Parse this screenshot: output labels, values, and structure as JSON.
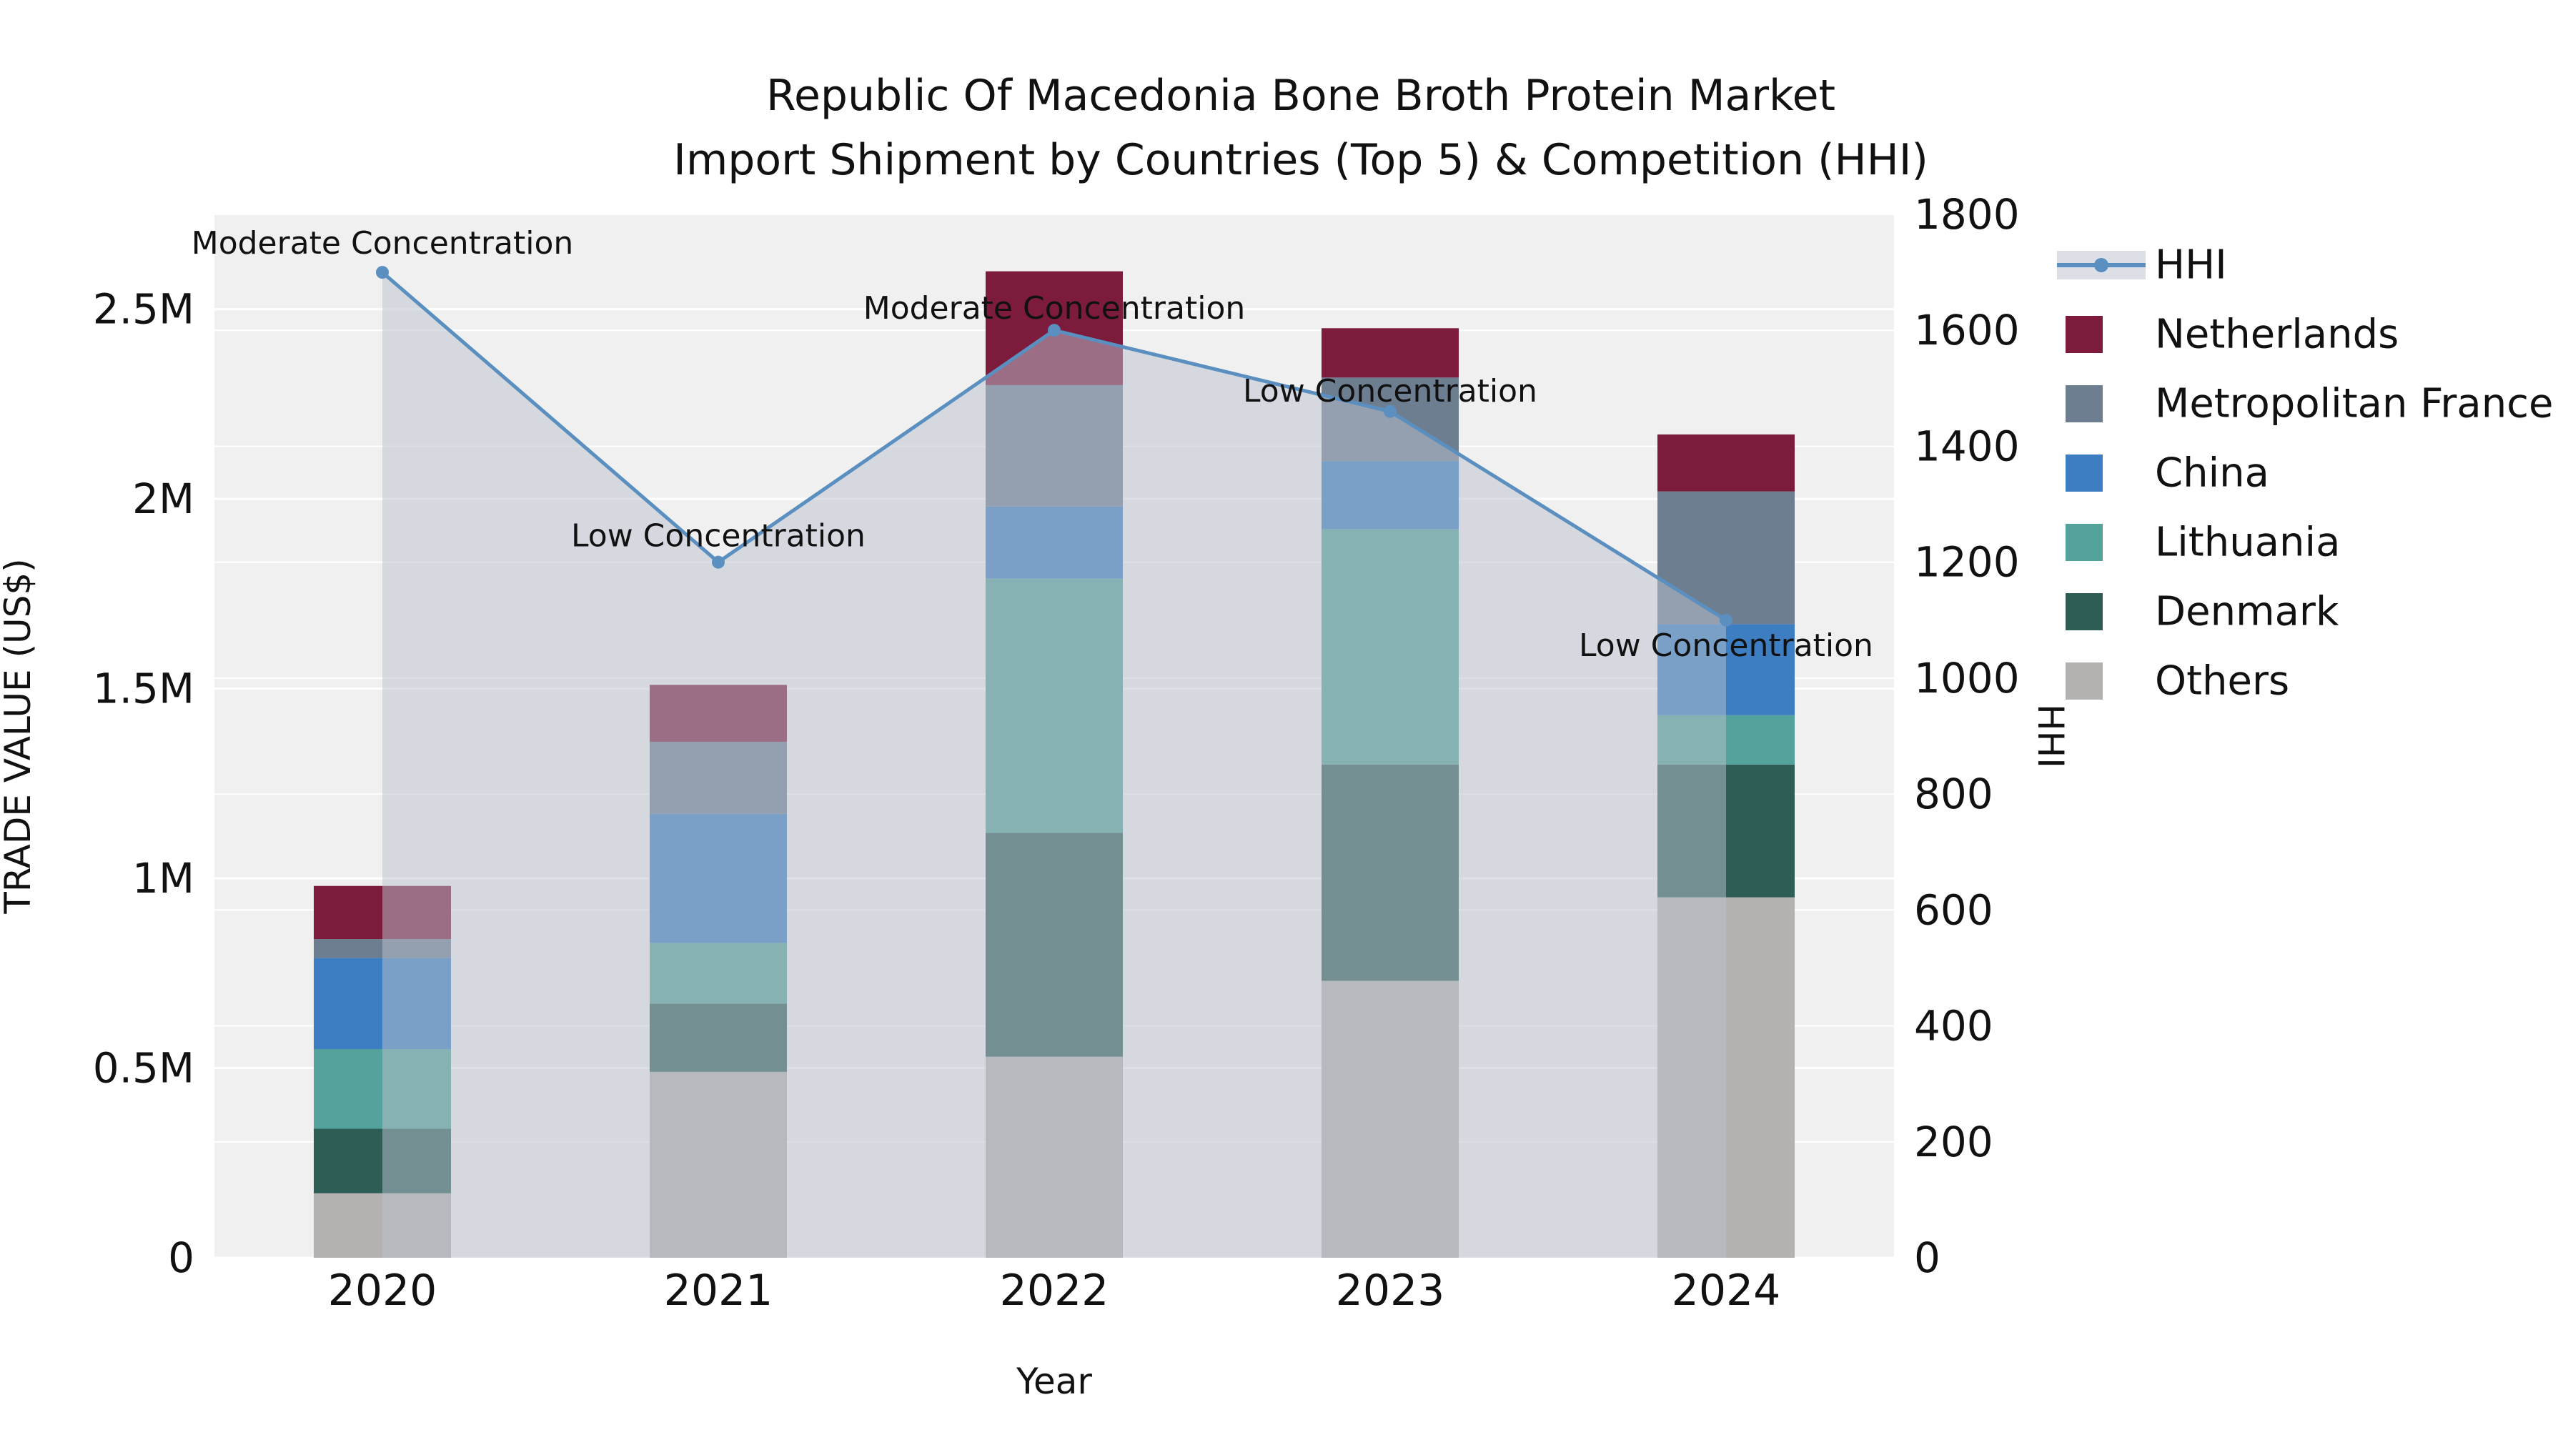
{
  "title": "Republic Of Macedonia Bone Broth Protein Market",
  "subtitle": "Import Shipment by Countries (Top 5) & Competition (HHI)",
  "chart_data": {
    "type": "stacked-bar+line",
    "categories": [
      "2020",
      "2021",
      "2022",
      "2023",
      "2024"
    ],
    "xlabel": "Year",
    "ylabel_left": "TRADE VALUE (US$)",
    "ylabel_right": "HHI",
    "y_left_ticks": [
      "0",
      "0.5M",
      "1M",
      "1.5M",
      "2M",
      "2.5M"
    ],
    "y_left_tick_values": [
      0,
      500000,
      1000000,
      1500000,
      2000000,
      2500000
    ],
    "y_left_max": 2750000,
    "y_right_tick_values": [
      0,
      200,
      400,
      600,
      800,
      1000,
      1200,
      1400,
      1600,
      1800
    ],
    "y_right_max": 1800,
    "plot_bg": "#f0f0f0",
    "grid_color": "#ffffff",
    "series": [
      {
        "name": "Others",
        "color": "#b3b2b0",
        "values": [
          170000,
          490000,
          530000,
          730000,
          950000
        ]
      },
      {
        "name": "Denmark",
        "color": "#2e5d55",
        "values": [
          170000,
          180000,
          590000,
          570000,
          350000
        ]
      },
      {
        "name": "Lithuania",
        "color": "#53a29b",
        "values": [
          210000,
          160000,
          670000,
          620000,
          130000
        ]
      },
      {
        "name": "China",
        "color": "#3d7ec2",
        "values": [
          240000,
          340000,
          190000,
          180000,
          240000
        ]
      },
      {
        "name": "Metropolitan France",
        "color": "#6e7e91",
        "values": [
          50000,
          190000,
          320000,
          220000,
          350000
        ]
      },
      {
        "name": "Netherlands",
        "color": "#7c1b3c",
        "values": [
          140000,
          150000,
          300000,
          130000,
          150000
        ]
      }
    ],
    "hhi": {
      "name": "HHI",
      "color": "#5a8fc0",
      "area_fill": "rgba(185,193,205,0.5)",
      "values": [
        1700,
        1200,
        1600,
        1460,
        1100
      ]
    },
    "annotations": [
      {
        "i": 0,
        "text": "Moderate Concentration",
        "dy": -26
      },
      {
        "i": 1,
        "text": "Low Concentration",
        "dy": -22
      },
      {
        "i": 2,
        "text": "Moderate Concentration",
        "dy": -16
      },
      {
        "i": 3,
        "text": "Low Concentration",
        "dy": -14
      },
      {
        "i": 4,
        "text": "Low Concentration",
        "dy": 50
      }
    ],
    "legend_order": [
      "HHI",
      "Netherlands",
      "Metropolitan France",
      "China",
      "Lithuania",
      "Denmark",
      "Others"
    ]
  }
}
